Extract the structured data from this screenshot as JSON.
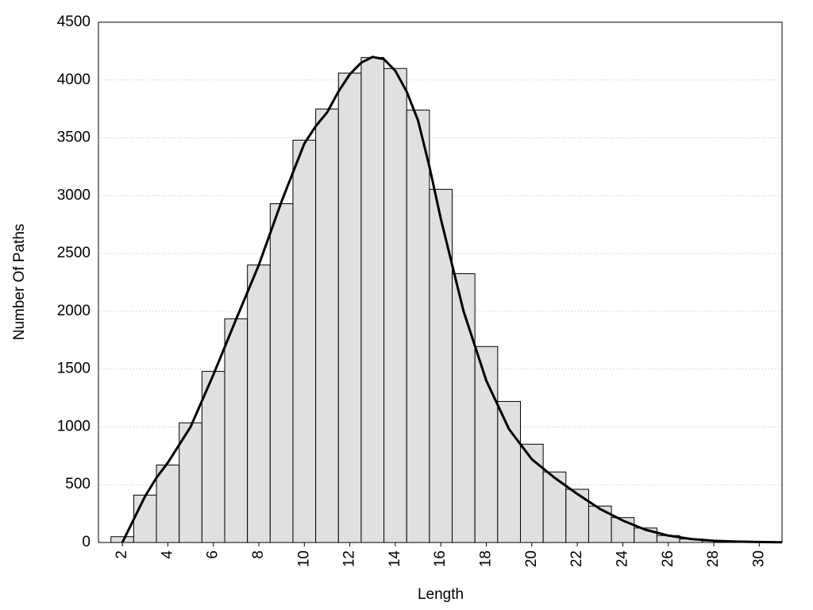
{
  "chart_data": {
    "type": "histogram",
    "xlabel": "Length",
    "ylabel": "Number Of Paths",
    "bins": [
      1.5,
      2.5,
      3.5,
      4.5,
      5.5,
      6.5,
      7.5,
      8.5,
      9.5,
      10.5,
      11.5,
      12.5,
      13.5,
      14.5,
      15.5,
      16.5,
      17.5,
      18.5,
      19.5,
      20.5,
      21.5,
      22.5,
      23.5,
      24.5,
      25.5,
      26.5,
      27.5,
      28.5,
      29.5,
      30.5
    ],
    "values": [
      50,
      410,
      670,
      1035,
      1480,
      1935,
      2400,
      2930,
      3480,
      3750,
      4060,
      4195,
      4100,
      3740,
      3055,
      2325,
      1695,
      1220,
      850,
      610,
      460,
      315,
      215,
      125,
      60,
      30,
      15,
      8,
      5
    ],
    "color": "#e0e0e0",
    "curve": {
      "color": "#000000",
      "x": [
        2,
        2.5,
        3,
        3.5,
        4,
        5,
        6,
        7,
        8,
        9,
        10,
        10.5,
        11,
        11.5,
        12,
        12.5,
        13,
        13.5,
        14,
        14.5,
        15,
        15.5,
        16,
        17,
        18,
        19,
        20,
        21,
        22,
        23,
        24,
        25,
        26,
        27,
        28,
        29,
        30,
        31
      ],
      "y": [
        0,
        200,
        400,
        560,
        690,
        1000,
        1450,
        1930,
        2400,
        2950,
        3450,
        3600,
        3720,
        3900,
        4050,
        4150,
        4200,
        4180,
        4080,
        3900,
        3650,
        3250,
        2800,
        2000,
        1400,
        980,
        720,
        560,
        420,
        290,
        190,
        110,
        60,
        30,
        15,
        8,
        4,
        2
      ]
    },
    "xlim": [
      0.95,
      31
    ],
    "ylim": [
      0,
      4500
    ],
    "xticks": [
      2,
      4,
      6,
      8,
      10,
      12,
      14,
      16,
      18,
      20,
      22,
      24,
      26,
      28,
      30
    ],
    "yticks": [
      0,
      500,
      1000,
      1500,
      2000,
      2500,
      3000,
      3500,
      4000,
      4500
    ],
    "grid": true
  }
}
